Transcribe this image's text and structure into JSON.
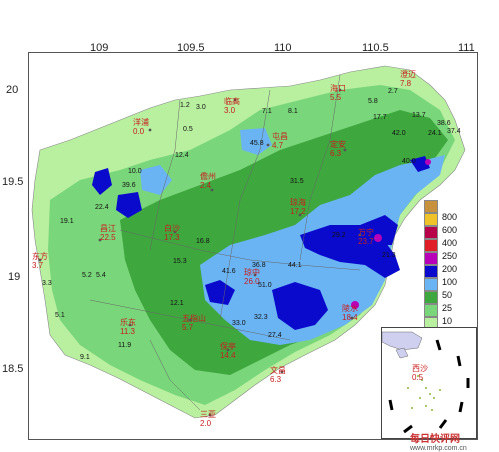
{
  "map": {
    "x_ticks": [
      "109",
      "109.5",
      "110",
      "110.5",
      "111"
    ],
    "y_ticks": [
      "20",
      "19.5",
      "19",
      "18.5"
    ],
    "legend": [
      {
        "label": "800",
        "color": "#c8923c"
      },
      {
        "label": "600",
        "color": "#f0c22a"
      },
      {
        "label": "400",
        "color": "#b8004a"
      },
      {
        "label": "250",
        "color": "#e01e28"
      },
      {
        "label": "200",
        "color": "#b900b9"
      },
      {
        "label": "100",
        "color": "#0a0acc"
      },
      {
        "label": "50",
        "color": "#6ab4f4"
      },
      {
        "label": "25",
        "color": "#3ea73e"
      },
      {
        "label": "10",
        "color": "#7ad67a"
      },
      {
        "label": "1",
        "color": "#b8f0a0"
      }
    ],
    "stations": [
      {
        "name": "海口",
        "value": "5.5"
      },
      {
        "name": "临高",
        "value": "3.0"
      },
      {
        "name": "洋浦",
        "value": "0.0"
      },
      {
        "name": "澄迈",
        "value": "7.8"
      },
      {
        "name": "文昌",
        "value": "6.3"
      },
      {
        "name": "定安",
        "value": "6.3"
      },
      {
        "name": "屯昌",
        "value": "4.7"
      },
      {
        "name": "儋州",
        "value": "2.4"
      },
      {
        "name": "琼海",
        "value": "17.2"
      },
      {
        "name": "白沙",
        "value": "17.3"
      },
      {
        "name": "昌江",
        "value": "22.5"
      },
      {
        "name": "琼中",
        "value": "26.0"
      },
      {
        "name": "东方",
        "value": "3.7"
      },
      {
        "name": "万宁",
        "value": "23.7"
      },
      {
        "name": "五指山",
        "value": "5.7"
      },
      {
        "name": "乐东",
        "value": "11.3"
      },
      {
        "name": "保亭",
        "value": "14.4"
      },
      {
        "name": "陵水",
        "value": "18.4"
      },
      {
        "name": "三亚",
        "value": "2.0"
      },
      {
        "name": "西沙",
        "value": "0.5"
      }
    ],
    "values": [
      "0.5",
      "1.2",
      "3.0",
      "7.1",
      "8.1",
      "5.8",
      "2.7",
      "13.7",
      "17.7",
      "38.6",
      "37.4",
      "24.1",
      "42.0",
      "45.8",
      "31.5",
      "39.6",
      "40.0",
      "10.0",
      "12.4",
      "19.1",
      "22.4",
      "41.6",
      "36.8",
      "51.0",
      "44.1",
      "29.2",
      "21.3",
      "16.8",
      "15.3",
      "12.1",
      "33.0",
      "32.3",
      "27.4",
      "11.9",
      "9.1",
      "5.1",
      "3.3",
      "5.2",
      "5.4"
    ],
    "watermark": {
      "name": "每日快评网",
      "url": "www.mrkp.com.cn"
    }
  }
}
